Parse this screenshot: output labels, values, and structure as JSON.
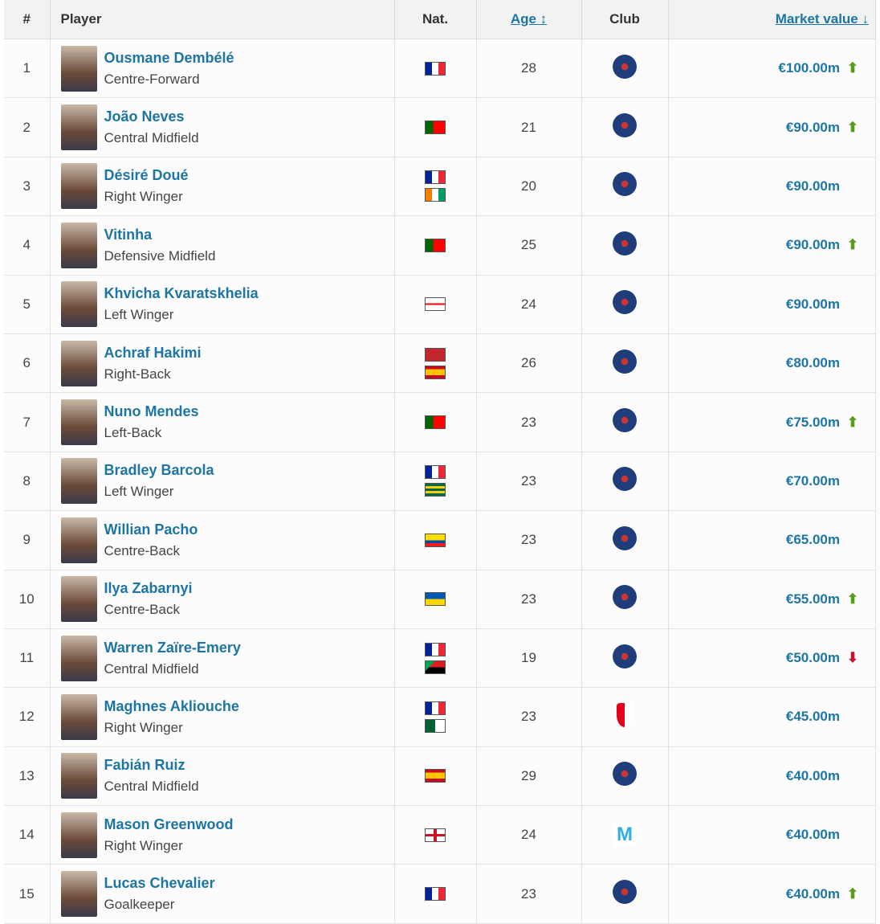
{
  "headers": {
    "rank": "#",
    "player": "Player",
    "nat": "Nat.",
    "age": "Age ↕",
    "club": "Club",
    "value": "Market value ↓"
  },
  "colors": {
    "link": "#1d75a3",
    "up": "#5a9a1e",
    "down": "#c8102e"
  },
  "players": [
    {
      "rank": "1",
      "name": "Ousmane Dembélé",
      "pos": "Centre-Forward",
      "nat": [
        "France"
      ],
      "age": "28",
      "club": "PSG",
      "value": "€100.00m",
      "trend": "up"
    },
    {
      "rank": "2",
      "name": "João Neves",
      "pos": "Central Midfield",
      "nat": [
        "Portugal"
      ],
      "age": "21",
      "club": "PSG",
      "value": "€90.00m",
      "trend": "up"
    },
    {
      "rank": "3",
      "name": "Désiré Doué",
      "pos": "Right Winger",
      "nat": [
        "France",
        "Cote d'Ivoire"
      ],
      "age": "20",
      "club": "PSG",
      "value": "€90.00m",
      "trend": ""
    },
    {
      "rank": "4",
      "name": "Vitinha",
      "pos": "Defensive Midfield",
      "nat": [
        "Portugal"
      ],
      "age": "25",
      "club": "PSG",
      "value": "€90.00m",
      "trend": "up"
    },
    {
      "rank": "5",
      "name": "Khvicha Kvaratskhelia",
      "pos": "Left Winger",
      "nat": [
        "Georgia"
      ],
      "age": "24",
      "club": "PSG",
      "value": "€90.00m",
      "trend": ""
    },
    {
      "rank": "6",
      "name": "Achraf Hakimi",
      "pos": "Right-Back",
      "nat": [
        "Morocco",
        "Spain"
      ],
      "age": "26",
      "club": "PSG",
      "value": "€80.00m",
      "trend": ""
    },
    {
      "rank": "7",
      "name": "Nuno Mendes",
      "pos": "Left-Back",
      "nat": [
        "Portugal"
      ],
      "age": "23",
      "club": "PSG",
      "value": "€75.00m",
      "trend": "up"
    },
    {
      "rank": "8",
      "name": "Bradley Barcola",
      "pos": "Left Winger",
      "nat": [
        "France",
        "Togo"
      ],
      "age": "23",
      "club": "PSG",
      "value": "€70.00m",
      "trend": ""
    },
    {
      "rank": "9",
      "name": "Willian Pacho",
      "pos": "Centre-Back",
      "nat": [
        "Ecuador"
      ],
      "age": "23",
      "club": "PSG",
      "value": "€65.00m",
      "trend": ""
    },
    {
      "rank": "10",
      "name": "Ilya Zabarnyi",
      "pos": "Centre-Back",
      "nat": [
        "Ukraine"
      ],
      "age": "23",
      "club": "PSG",
      "value": "€55.00m",
      "trend": "up"
    },
    {
      "rank": "11",
      "name": "Warren Zaïre-Emery",
      "pos": "Central Midfield",
      "nat": [
        "France",
        "Martinique"
      ],
      "age": "19",
      "club": "PSG",
      "value": "€50.00m",
      "trend": "down"
    },
    {
      "rank": "12",
      "name": "Maghnes Akliouche",
      "pos": "Right Winger",
      "nat": [
        "France",
        "Algeria"
      ],
      "age": "23",
      "club": "Monaco",
      "value": "€45.00m",
      "trend": ""
    },
    {
      "rank": "13",
      "name": "Fabián Ruiz",
      "pos": "Central Midfield",
      "nat": [
        "Spain"
      ],
      "age": "29",
      "club": "PSG",
      "value": "€40.00m",
      "trend": ""
    },
    {
      "rank": "14",
      "name": "Mason Greenwood",
      "pos": "Right Winger",
      "nat": [
        "England"
      ],
      "age": "24",
      "club": "Marseille",
      "value": "€40.00m",
      "trend": ""
    },
    {
      "rank": "15",
      "name": "Lucas Chevalier",
      "pos": "Goalkeeper",
      "nat": [
        "France"
      ],
      "age": "23",
      "club": "PSG",
      "value": "€40.00m",
      "trend": "up"
    }
  ]
}
